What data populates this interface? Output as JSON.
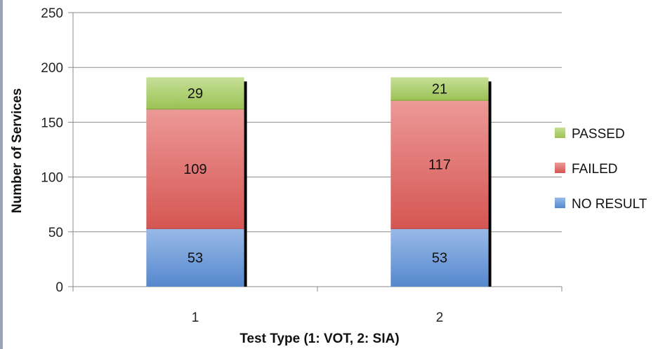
{
  "chart_data": {
    "type": "bar",
    "stacked": true,
    "categories": [
      "1",
      "2"
    ],
    "series": [
      {
        "name": "NO RESULT",
        "values": [
          53,
          53
        ],
        "color": "#5b8fd9"
      },
      {
        "name": "FAILED",
        "values": [
          109,
          117
        ],
        "color": "#e05a57"
      },
      {
        "name": "PASSED",
        "values": [
          29,
          21
        ],
        "color": "#a3cc58"
      }
    ],
    "title": "",
    "xlabel": "Test Type (1: VOT, 2: SIA)",
    "ylabel": "Number of Services",
    "ylim": [
      0,
      250
    ],
    "yticks": [
      0,
      50,
      100,
      150,
      200,
      250
    ],
    "grid": true,
    "legend": "right",
    "legend_order": [
      "PASSED",
      "FAILED",
      "NO RESULT"
    ]
  }
}
